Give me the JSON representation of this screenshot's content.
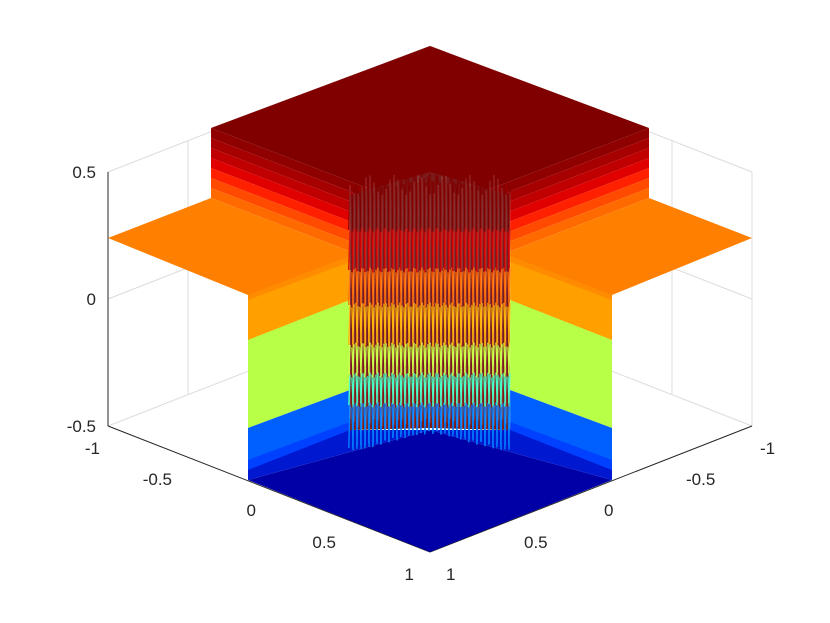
{
  "chart_data": {
    "type": "surface",
    "title": "",
    "xlabel": "",
    "ylabel": "",
    "zlabel": "",
    "x_ticks": [
      "-1",
      "-0.5",
      "0",
      "0.5",
      "1"
    ],
    "y_ticks": [
      "-1",
      "-0.5",
      "0",
      "0.5",
      "1"
    ],
    "z_ticks": [
      "-0.5",
      "0",
      "0.5"
    ],
    "xlim": [
      -1,
      1
    ],
    "ylim": [
      -1,
      1
    ],
    "zlim": [
      -0.5,
      0.5
    ],
    "grid": true,
    "colormap": "jet",
    "surface_levels": {
      "top_plateau": 0.5,
      "side_shelves": 0.25,
      "bottom_plateau": -0.5
    },
    "colors": {
      "dark_red": "#800000",
      "red": "#e00000",
      "orange": "#ff8000",
      "light_orange": "#ff9c00",
      "yellow_green": "#b8ff48",
      "blue": "#0060ff",
      "dark_blue": "#0000a6"
    }
  }
}
